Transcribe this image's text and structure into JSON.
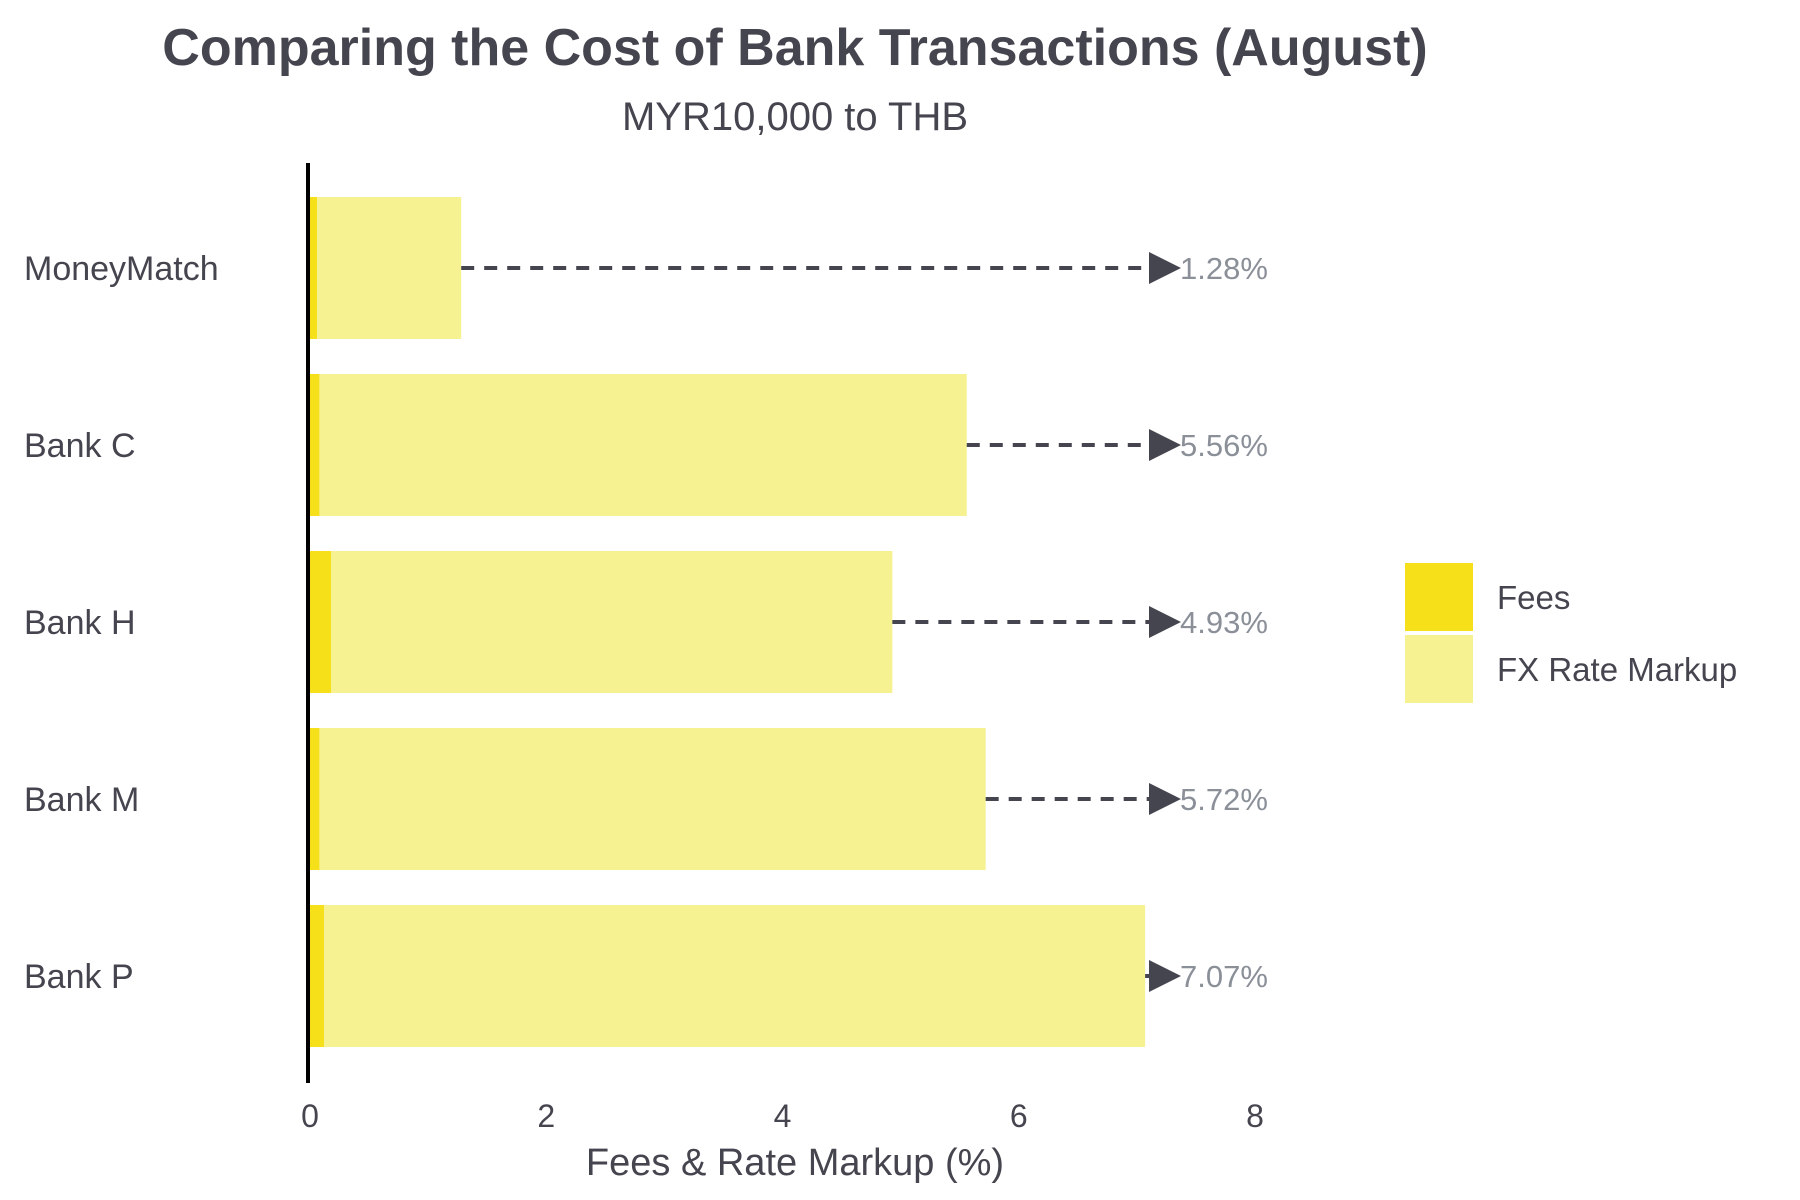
{
  "chart_data": {
    "type": "bar",
    "orientation": "horizontal",
    "stacked": true,
    "title": "Comparing the Cost of Bank Transactions (August)",
    "subtitle": "MYR10,000 to THB",
    "xlabel": "Fees & Rate Markup (%)",
    "ylabel": "",
    "xlim": [
      0,
      8
    ],
    "xticks": [
      "0",
      "2",
      "4",
      "6",
      "8"
    ],
    "categories": [
      "MoneyMatch",
      "Bank C",
      "Bank H",
      "Bank M",
      "Bank P"
    ],
    "series": [
      {
        "name": "Fees",
        "color": "#f5e01a",
        "values": [
          0.06,
          0.08,
          0.18,
          0.08,
          0.12
        ]
      },
      {
        "name": "FX Rate Markup",
        "color": "#f6f292",
        "values": [
          1.22,
          5.48,
          4.75,
          5.64,
          6.95
        ]
      }
    ],
    "totals": [
      1.28,
      5.56,
      4.93,
      5.72,
      7.07
    ],
    "total_labels": [
      "1.28%",
      "5.56%",
      "4.93%",
      "5.72%",
      "7.07%"
    ],
    "total_label_color": "#8a8f98",
    "arrow_color": "#45454f",
    "legend": {
      "placement": "right",
      "entries": [
        "Fees",
        "FX Rate Markup"
      ]
    },
    "grid": false
  }
}
